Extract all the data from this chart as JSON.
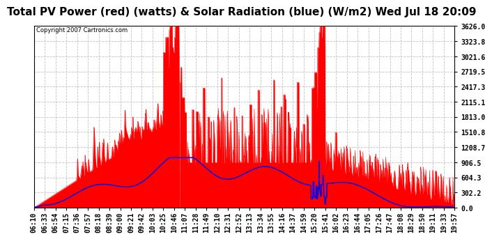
{
  "title": "Total PV Power (red) (watts) & Solar Radiation (blue) (W/m2) Wed Jul 18 20:09",
  "copyright": "Copyright 2007 Cartronics.com",
  "yticks": [
    0.0,
    302.2,
    604.3,
    906.5,
    1208.7,
    1510.8,
    1813.0,
    2115.1,
    2417.3,
    2719.5,
    3021.6,
    3323.8,
    3626.0
  ],
  "ylim": [
    0,
    3626.0
  ],
  "bg_color": "#FFFFFF",
  "plot_bg_color": "#FFFFFF",
  "grid_color": "#C0C0C0",
  "red_color": "#FF0000",
  "blue_color": "#0000EE",
  "title_fontsize": 11,
  "tick_fontsize": 7,
  "xtick_labels": [
    "06:10",
    "06:33",
    "06:54",
    "07:15",
    "07:36",
    "07:57",
    "08:18",
    "08:39",
    "09:00",
    "09:21",
    "09:42",
    "10:03",
    "10:25",
    "10:46",
    "11:07",
    "11:28",
    "11:49",
    "12:10",
    "12:31",
    "12:52",
    "13:13",
    "13:34",
    "13:55",
    "14:16",
    "14:37",
    "14:59",
    "15:20",
    "15:41",
    "16:02",
    "16:23",
    "16:44",
    "17:05",
    "17:26",
    "17:47",
    "18:08",
    "18:29",
    "18:50",
    "19:11",
    "19:33",
    "19:57"
  ]
}
